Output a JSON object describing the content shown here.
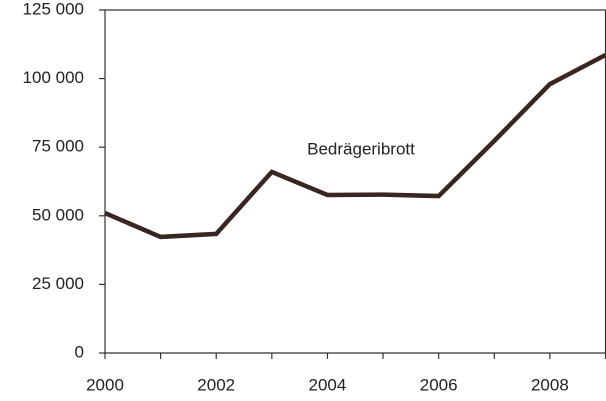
{
  "chart_data": {
    "type": "line",
    "annotation": "Bedrägeribrott",
    "x": [
      2000,
      2001,
      2002,
      2003,
      2004,
      2005,
      2006,
      2007,
      2008,
      2009
    ],
    "series": [
      {
        "name": "Bedrägeribrott",
        "color": "#3a2520",
        "values": [
          51000,
          42300,
          43400,
          66000,
          57600,
          57700,
          57200,
          77300,
          98000,
          108600
        ]
      }
    ],
    "xlim": [
      2000,
      2009
    ],
    "xticks": [
      2000,
      2002,
      2004,
      2006,
      2008
    ],
    "xminor_ticks": [
      2001,
      2003,
      2005,
      2007,
      2009
    ],
    "ylim": [
      0,
      125000
    ],
    "yticks": [
      {
        "value": 0,
        "label": "0"
      },
      {
        "value": 25000,
        "label": "25 000"
      },
      {
        "value": 50000,
        "label": "50 000"
      },
      {
        "value": 75000,
        "label": "75 000"
      },
      {
        "value": 100000,
        "label": "100 000"
      },
      {
        "value": 125000,
        "label": "125 000"
      }
    ],
    "grid": false
  }
}
